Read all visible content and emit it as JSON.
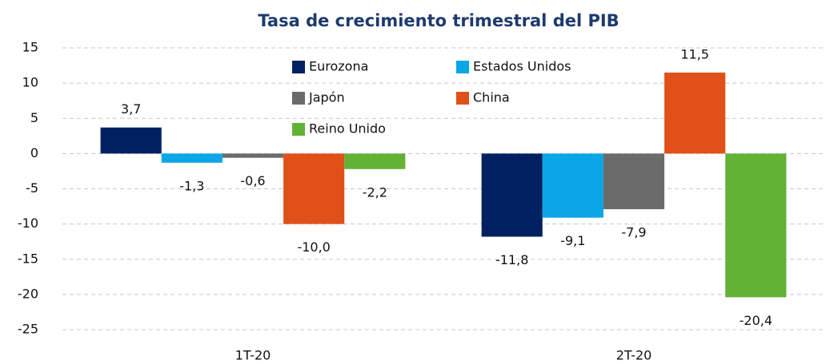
{
  "chart_data": {
    "type": "bar",
    "title": "Tasa de crecimiento trimestral del PIB",
    "categories": [
      "1T-20",
      "2T-20"
    ],
    "series": [
      {
        "name": "Eurozona",
        "color": "#002060",
        "values": [
          3.7,
          -11.8
        ],
        "value_labels": [
          "3,7",
          "-11,8"
        ]
      },
      {
        "name": "Estados Unidos",
        "color": "#0aa6e6",
        "values": [
          -1.3,
          -9.1
        ],
        "value_labels": [
          "-1,3",
          "-9,1"
        ]
      },
      {
        "name": "Japón",
        "color": "#6b6b6b",
        "values": [
          -0.6,
          -7.9
        ],
        "value_labels": [
          "-0,6",
          "-7,9"
        ]
      },
      {
        "name": "China",
        "color": "#e05019",
        "values": [
          -10.0,
          11.5
        ],
        "value_labels": [
          "-10,0",
          "11,5"
        ]
      },
      {
        "name": "Reino Unido",
        "color": "#62b236",
        "values": [
          -2.2,
          -20.4
        ],
        "value_labels": [
          "-2,2",
          "-20,4"
        ]
      }
    ],
    "ylim": [
      -25,
      15
    ],
    "yticks": [
      -25,
      -20,
      -15,
      -10,
      -5,
      0,
      5,
      10,
      15
    ],
    "grid": true
  }
}
